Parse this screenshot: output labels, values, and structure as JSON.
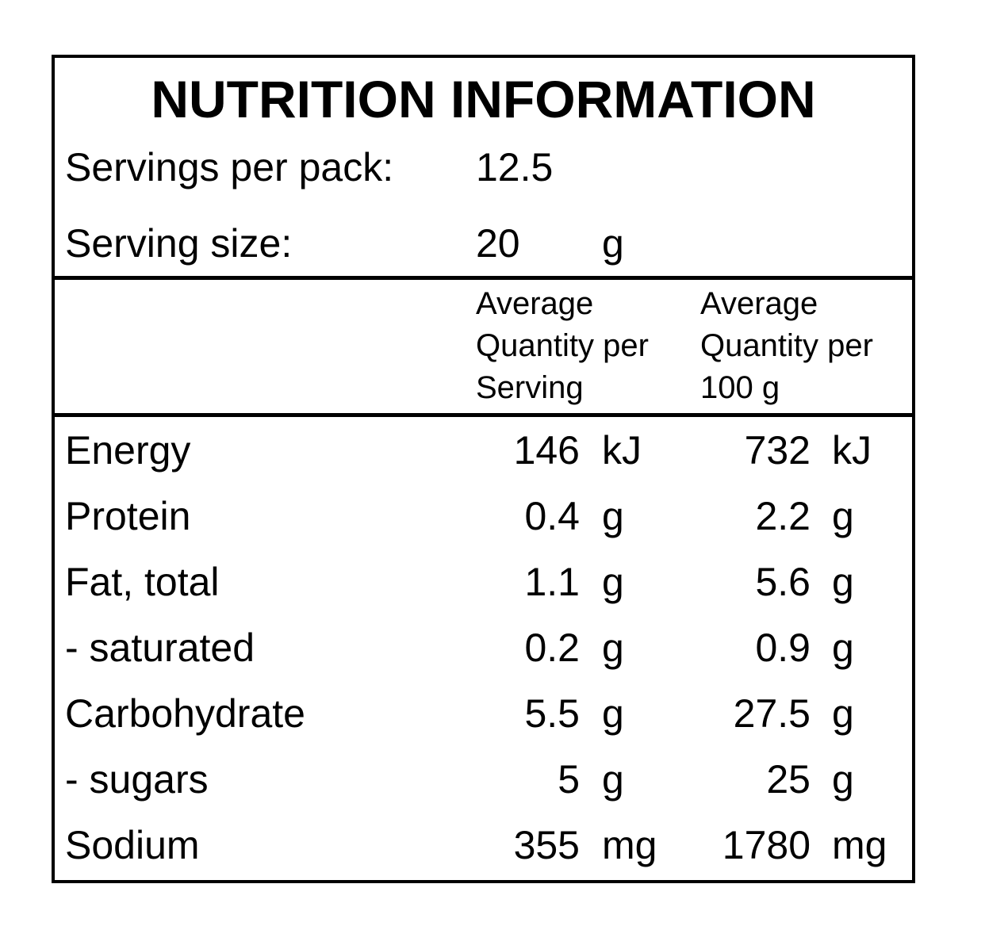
{
  "title": "NUTRITION INFORMATION",
  "servings_per_pack": {
    "label": "Servings per pack:",
    "value": "12.5"
  },
  "serving_size": {
    "label": "Serving size:",
    "value": "20",
    "unit": "g"
  },
  "columns": [
    {
      "line1": "Average",
      "line2": "Quantity per",
      "line3": "Serving"
    },
    {
      "line1": "Average",
      "line2": "Quantity per",
      "line3": "100 g"
    }
  ],
  "rows": [
    {
      "nutrient": "Energy",
      "per_serving": "146",
      "per_serving_unit": "kJ",
      "per_100g": "732",
      "per_100g_unit": "kJ"
    },
    {
      "nutrient": "Protein",
      "per_serving": "0.4",
      "per_serving_unit": "g",
      "per_100g": "2.2",
      "per_100g_unit": "g"
    },
    {
      "nutrient": "Fat, total",
      "per_serving": "1.1",
      "per_serving_unit": "g",
      "per_100g": "5.6",
      "per_100g_unit": "g"
    },
    {
      "nutrient": "- saturated",
      "per_serving": "0.2",
      "per_serving_unit": "g",
      "per_100g": "0.9",
      "per_100g_unit": "g"
    },
    {
      "nutrient": "Carbohydrate",
      "per_serving": "5.5",
      "per_serving_unit": "g",
      "per_100g": "27.5",
      "per_100g_unit": "g"
    },
    {
      "nutrient": "- sugars",
      "per_serving": "5",
      "per_serving_unit": "g",
      "per_100g": "25",
      "per_100g_unit": "g"
    },
    {
      "nutrient": "Sodium",
      "per_serving": "355",
      "per_serving_unit": "mg",
      "per_100g": "1780",
      "per_100g_unit": "mg"
    }
  ]
}
